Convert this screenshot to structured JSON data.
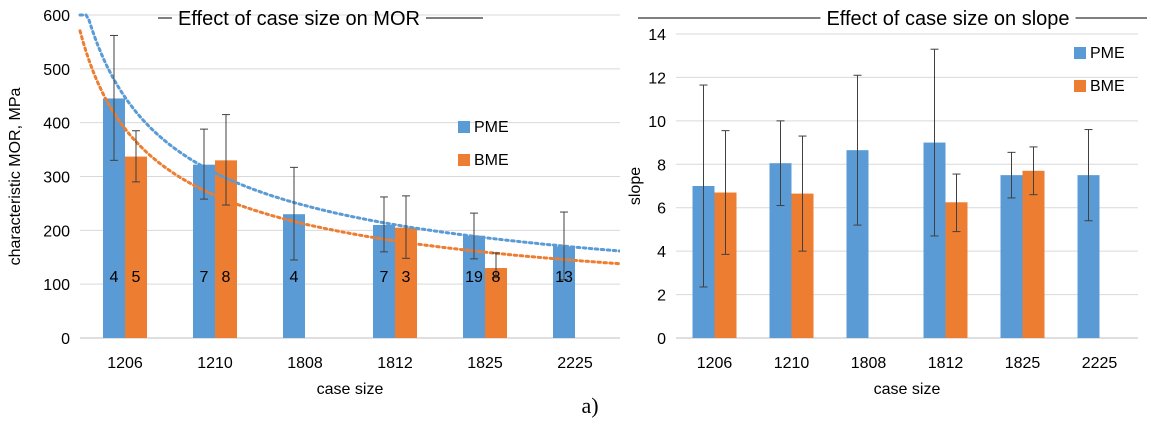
{
  "panel_caption": "a)",
  "chart_data": [
    {
      "type": "bar",
      "title": "Effect of case size on MOR",
      "xlabel": "case size",
      "ylabel": "characteristic MOR, MPa",
      "ylim": [
        0,
        600
      ],
      "yticks": [
        0,
        100,
        200,
        300,
        400,
        500,
        600
      ],
      "categories": [
        "1206",
        "1210",
        "1808",
        "1812",
        "1825",
        "2225"
      ],
      "legend_position": "right",
      "grid": true,
      "series": [
        {
          "name": "PME",
          "color": "#5b9bd5",
          "values": [
            445,
            322,
            230,
            210,
            190,
            170
          ],
          "err_low": [
            330,
            258,
            145,
            160,
            147,
            108
          ],
          "err_high": [
            562,
            388,
            317,
            262,
            232,
            234
          ],
          "labels": [
            "4",
            "7",
            "4",
            "7",
            "19",
            "13"
          ]
        },
        {
          "name": "BME",
          "color": "#ed7d31",
          "values": [
            337,
            330,
            null,
            205,
            130,
            null
          ],
          "err_low": [
            290,
            247,
            null,
            148,
            112,
            null
          ],
          "err_high": [
            385,
            415,
            null,
            264,
            158,
            null
          ],
          "labels": [
            "5",
            "8",
            "",
            "3",
            "8",
            ""
          ]
        }
      ],
      "trendlines": [
        {
          "series": "PME",
          "type": "power",
          "color": "#5b9bd5"
        },
        {
          "series": "BME",
          "type": "power",
          "color": "#ed7d31"
        }
      ]
    },
    {
      "type": "bar",
      "title": "Effect of case size on slope",
      "xlabel": "case size",
      "ylabel": "slope",
      "ylim": [
        0,
        14
      ],
      "yticks": [
        0,
        2,
        4,
        6,
        8,
        10,
        12,
        14
      ],
      "categories": [
        "1206",
        "1210",
        "1808",
        "1812",
        "1825",
        "2225"
      ],
      "legend_position": "top-right",
      "grid": true,
      "series": [
        {
          "name": "PME",
          "color": "#5b9bd5",
          "values": [
            7.0,
            8.05,
            8.65,
            9.0,
            7.5,
            7.5
          ],
          "err_low": [
            2.35,
            6.1,
            5.2,
            4.7,
            6.45,
            5.4
          ],
          "err_high": [
            11.65,
            10.0,
            12.1,
            13.3,
            8.55,
            9.6
          ]
        },
        {
          "name": "BME",
          "color": "#ed7d31",
          "values": [
            6.7,
            6.65,
            null,
            6.25,
            7.7,
            null
          ],
          "err_low": [
            3.85,
            4.0,
            null,
            4.9,
            6.6,
            null
          ],
          "err_high": [
            9.55,
            9.3,
            null,
            7.55,
            8.8,
            null
          ]
        }
      ]
    }
  ]
}
